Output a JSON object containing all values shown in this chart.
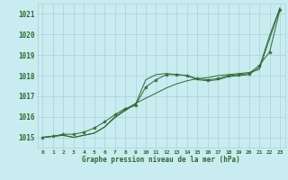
{
  "title": "Graphe pression niveau de la mer (hPa)",
  "bg_color": "#c8ecf0",
  "line_color": "#2d6a2d",
  "grid_color": "#aad0d8",
  "xlim": [
    -0.5,
    23.5
  ],
  "ylim": [
    1014.5,
    1021.5
  ],
  "yticks": [
    1015,
    1016,
    1017,
    1018,
    1019,
    1020,
    1021
  ],
  "xticks": [
    0,
    1,
    2,
    3,
    4,
    5,
    6,
    7,
    8,
    9,
    10,
    11,
    12,
    13,
    14,
    15,
    16,
    17,
    18,
    19,
    20,
    21,
    22,
    23
  ],
  "series_upper": {
    "x": [
      0,
      1,
      2,
      3,
      4,
      5,
      6,
      7,
      8,
      9,
      10,
      11,
      12,
      13,
      14,
      15,
      16,
      17,
      18,
      19,
      20,
      21,
      22,
      23
    ],
    "y": [
      1015.0,
      1015.05,
      1015.1,
      1015.0,
      1015.1,
      1015.2,
      1015.5,
      1015.95,
      1016.3,
      1016.6,
      1017.8,
      1018.05,
      1018.1,
      1018.05,
      1018.0,
      1017.8,
      1017.75,
      1017.8,
      1017.95,
      1018.0,
      1018.05,
      1018.4,
      1019.95,
      1021.3
    ]
  },
  "series_lower": {
    "x": [
      0,
      1,
      2,
      3,
      4,
      5,
      6,
      7,
      8,
      9,
      10,
      11,
      12,
      13,
      14,
      15,
      16,
      17,
      18,
      19,
      20,
      21,
      22,
      23
    ],
    "y": [
      1015.0,
      1015.05,
      1015.1,
      1015.0,
      1015.1,
      1015.2,
      1015.5,
      1016.0,
      1016.35,
      1016.65,
      1016.9,
      1017.15,
      1017.4,
      1017.6,
      1017.75,
      1017.85,
      1017.9,
      1018.0,
      1018.05,
      1018.1,
      1018.15,
      1018.3,
      1019.8,
      1021.25
    ]
  },
  "series_markers": {
    "x": [
      0,
      1,
      2,
      3,
      4,
      5,
      6,
      7,
      8,
      9,
      10,
      11,
      12,
      13,
      14,
      15,
      16,
      17,
      18,
      19,
      20,
      21,
      22,
      23
    ],
    "y": [
      1015.0,
      1015.05,
      1015.15,
      1015.15,
      1015.25,
      1015.45,
      1015.75,
      1016.1,
      1016.4,
      1016.55,
      1017.45,
      1017.8,
      1018.05,
      1018.05,
      1018.0,
      1017.85,
      1017.8,
      1017.85,
      1018.0,
      1018.05,
      1018.1,
      1018.5,
      1019.15,
      1021.2
    ]
  }
}
